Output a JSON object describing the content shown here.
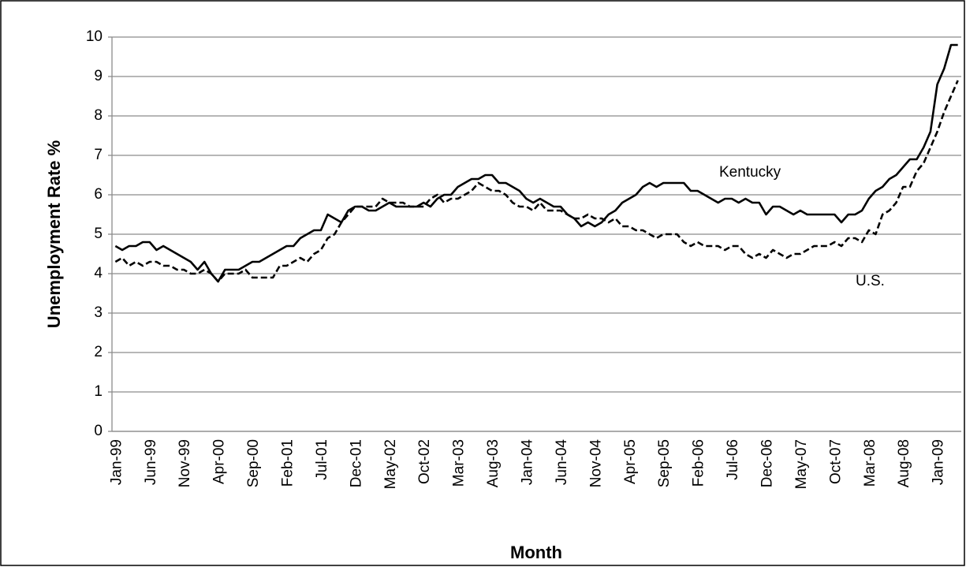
{
  "chart_data": {
    "type": "line",
    "x_label": "Month",
    "y_label": "Unemployment Rate %",
    "categories": [
      "Jan-99",
      null,
      null,
      null,
      null,
      "Jun-99",
      null,
      null,
      null,
      null,
      "Nov-99",
      null,
      null,
      null,
      null,
      "Apr-00",
      null,
      null,
      null,
      null,
      "Sep-00",
      null,
      null,
      null,
      null,
      "Feb-01",
      null,
      null,
      null,
      null,
      "Jul-01",
      null,
      null,
      null,
      null,
      "Dec-01",
      null,
      null,
      null,
      null,
      "May-02",
      null,
      null,
      null,
      null,
      "Oct-02",
      null,
      null,
      null,
      null,
      "Mar-03",
      null,
      null,
      null,
      null,
      "Aug-03",
      null,
      null,
      null,
      null,
      "Jan-04",
      null,
      null,
      null,
      null,
      "Jun-04",
      null,
      null,
      null,
      null,
      "Nov-04",
      null,
      null,
      null,
      null,
      "Apr-05",
      null,
      null,
      null,
      null,
      "Sep-05",
      null,
      null,
      null,
      null,
      "Feb-06",
      null,
      null,
      null,
      null,
      "Jul-06",
      null,
      null,
      null,
      null,
      "Dec-06",
      null,
      null,
      null,
      null,
      "May-07",
      null,
      null,
      null,
      null,
      "Oct-07",
      null,
      null,
      null,
      null,
      "Mar-08",
      null,
      null,
      null,
      null,
      "Aug-08",
      null,
      null,
      null,
      null,
      "Jan-09",
      null,
      null,
      null
    ],
    "series": [
      {
        "name": "Kentucky",
        "color": "#000000",
        "dash": false,
        "values": [
          4.7,
          4.6,
          4.7,
          4.7,
          4.8,
          4.8,
          4.6,
          4.7,
          4.6,
          4.5,
          4.4,
          4.3,
          4.1,
          4.3,
          4.0,
          3.8,
          4.1,
          4.1,
          4.1,
          4.2,
          4.3,
          4.3,
          4.4,
          4.5,
          4.6,
          4.7,
          4.7,
          4.9,
          5.0,
          5.1,
          5.1,
          5.5,
          5.4,
          5.3,
          5.6,
          5.7,
          5.7,
          5.6,
          5.6,
          5.7,
          5.8,
          5.7,
          5.7,
          5.7,
          5.7,
          5.8,
          5.7,
          5.9,
          6.0,
          6.0,
          6.2,
          6.3,
          6.4,
          6.4,
          6.5,
          6.5,
          6.3,
          6.3,
          6.2,
          6.1,
          5.9,
          5.8,
          5.9,
          5.8,
          5.7,
          5.7,
          5.5,
          5.4,
          5.2,
          5.3,
          5.2,
          5.3,
          5.5,
          5.6,
          5.8,
          5.9,
          6.0,
          6.2,
          6.3,
          6.2,
          6.3,
          6.3,
          6.3,
          6.3,
          6.1,
          6.1,
          6.0,
          5.9,
          5.8,
          5.9,
          5.9,
          5.8,
          5.9,
          5.8,
          5.8,
          5.5,
          5.7,
          5.7,
          5.6,
          5.5,
          5.6,
          5.5,
          5.5,
          5.5,
          5.5,
          5.5,
          5.3,
          5.5,
          5.5,
          5.6,
          5.9,
          6.1,
          6.2,
          6.4,
          6.5,
          6.7,
          6.9,
          6.9,
          7.2,
          7.6,
          8.8,
          9.2,
          9.8,
          9.8
        ]
      },
      {
        "name": "U.S.",
        "color": "#000000",
        "dash": true,
        "values": [
          4.3,
          4.4,
          4.2,
          4.3,
          4.2,
          4.3,
          4.3,
          4.2,
          4.2,
          4.1,
          4.1,
          4.0,
          4.0,
          4.1,
          4.0,
          3.8,
          4.0,
          4.0,
          4.0,
          4.1,
          3.9,
          3.9,
          3.9,
          3.9,
          4.2,
          4.2,
          4.3,
          4.4,
          4.3,
          4.5,
          4.6,
          4.9,
          5.0,
          5.3,
          5.5,
          5.7,
          5.7,
          5.7,
          5.7,
          5.9,
          5.8,
          5.8,
          5.8,
          5.7,
          5.7,
          5.7,
          5.9,
          6.0,
          5.8,
          5.9,
          5.9,
          6.0,
          6.1,
          6.3,
          6.2,
          6.1,
          6.1,
          6.0,
          5.8,
          5.7,
          5.7,
          5.6,
          5.8,
          5.6,
          5.6,
          5.6,
          5.5,
          5.4,
          5.4,
          5.5,
          5.4,
          5.4,
          5.3,
          5.4,
          5.2,
          5.2,
          5.1,
          5.1,
          5.0,
          4.9,
          5.0,
          5.0,
          5.0,
          4.8,
          4.7,
          4.8,
          4.7,
          4.7,
          4.7,
          4.6,
          4.7,
          4.7,
          4.5,
          4.4,
          4.5,
          4.4,
          4.6,
          4.5,
          4.4,
          4.5,
          4.5,
          4.6,
          4.7,
          4.7,
          4.7,
          4.8,
          4.7,
          4.9,
          4.9,
          4.8,
          5.1,
          5.0,
          5.5,
          5.6,
          5.8,
          6.2,
          6.2,
          6.6,
          6.8,
          7.2,
          7.6,
          8.1,
          8.5,
          8.9
        ]
      }
    ],
    "ylim": [
      0,
      10
    ],
    "yticks": [
      0,
      1,
      2,
      3,
      4,
      5,
      6,
      7,
      8,
      9,
      10
    ],
    "grid": true
  }
}
